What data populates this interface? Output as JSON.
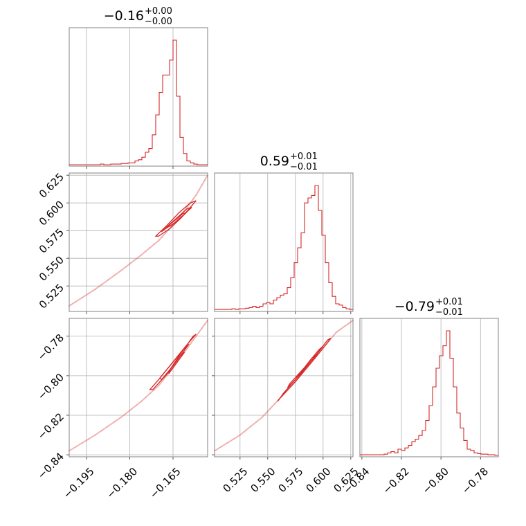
{
  "chart_data": {
    "type": "corner",
    "color": "#d62728",
    "params": [
      {
        "range": [
          -0.201,
          -0.153
        ],
        "title": {
          "median": "−0.16",
          "plus": "+0.00",
          "minus": "−0.00"
        },
        "ticks": [
          -0.195,
          -0.18,
          -0.165
        ],
        "tick_labels": [
          "−0.195",
          "−0.180",
          "−0.165"
        ],
        "hist": {
          "edges_start": -0.201,
          "bin_width": 0.0012,
          "values": [
            0,
            0,
            0,
            0,
            0,
            0,
            0,
            0,
            0,
            0.5,
            0,
            0,
            0.5,
            0.5,
            0.5,
            1,
            1,
            1.5,
            1.5,
            3,
            4,
            6,
            10,
            13,
            24,
            40,
            58,
            72,
            72,
            84,
            100,
            55,
            22,
            9,
            3,
            1.5,
            0.5,
            0,
            0,
            0
          ]
        }
      },
      {
        "range": [
          0.502,
          0.627
        ],
        "title": {
          "median": "0.59",
          "plus": "+0.01",
          "minus": "−0.01"
        },
        "ticks": [
          0.525,
          0.55,
          0.575,
          0.6,
          0.625
        ],
        "tick_labels": [
          "0.525",
          "0.550",
          "0.575",
          "0.600",
          "0.625"
        ],
        "hist": {
          "edges_start": 0.502,
          "bin_width": 0.003125,
          "values": [
            0.5,
            0.5,
            0.5,
            0.5,
            0.5,
            1,
            0.5,
            1,
            1,
            1.5,
            2,
            3,
            2,
            3,
            5,
            6,
            5,
            8,
            10,
            12,
            13,
            18,
            26,
            38,
            50,
            62,
            86,
            90,
            92,
            100,
            80,
            60,
            38,
            22,
            11,
            5,
            4,
            2,
            1,
            0.5
          ]
        }
      },
      {
        "range": [
          -0.841,
          -0.771
        ],
        "title": {
          "median": "−0.79",
          "plus": "+0.01",
          "minus": "−0.01"
        },
        "ticks": [
          -0.84,
          -0.82,
          -0.8,
          -0.78
        ],
        "tick_labels": [
          "−0.84",
          "−0.82",
          "−0.80",
          "−0.78"
        ],
        "hist": {
          "edges_start": -0.841,
          "bin_width": 0.00175,
          "values": [
            0.5,
            0.5,
            0.5,
            0.5,
            0.5,
            0.5,
            0.5,
            1,
            2,
            3,
            2,
            5,
            4,
            6,
            8,
            11,
            13,
            16,
            20,
            28,
            40,
            55,
            70,
            80,
            88,
            100,
            78,
            55,
            34,
            22,
            12,
            5,
            4,
            2,
            1.5,
            1,
            1,
            0.5,
            0.5,
            0
          ]
        }
      }
    ],
    "pairs": [
      {
        "x_param": 0,
        "y_param": 1,
        "ridge": [
          [
            -0.201,
            0.507
          ],
          [
            -0.192,
            0.522
          ],
          [
            -0.183,
            0.539
          ],
          [
            -0.176,
            0.553
          ],
          [
            -0.17,
            0.566
          ],
          [
            -0.165,
            0.58
          ],
          [
            -0.161,
            0.593
          ],
          [
            -0.157,
            0.607
          ],
          [
            -0.153,
            0.625
          ]
        ],
        "contours": [
          [
            [
              -0.17,
              0.57
            ],
            [
              -0.166,
              0.577
            ],
            [
              -0.162,
              0.587
            ],
            [
              -0.158,
              0.599
            ],
            [
              -0.157,
              0.602
            ],
            [
              -0.159,
              0.6
            ],
            [
              -0.163,
              0.591
            ],
            [
              -0.167,
              0.58
            ],
            [
              -0.171,
              0.57
            ]
          ],
          [
            [
              -0.168,
              0.576
            ],
            [
              -0.1645,
              0.582
            ],
            [
              -0.161,
              0.59
            ],
            [
              -0.1585,
              0.596
            ],
            [
              -0.16,
              0.595
            ],
            [
              -0.163,
              0.588
            ],
            [
              -0.1665,
              0.58
            ],
            [
              -0.169,
              0.574
            ]
          ],
          [
            [
              -0.166,
              0.579
            ],
            [
              -0.163,
              0.585
            ],
            [
              -0.1605,
              0.591
            ],
            [
              -0.1615,
              0.5905
            ],
            [
              -0.1645,
              0.584
            ],
            [
              -0.167,
              0.5785
            ]
          ]
        ]
      },
      {
        "x_param": 0,
        "y_param": 2,
        "ridge": [
          [
            -0.201,
            -0.838
          ],
          [
            -0.192,
            -0.83
          ],
          [
            -0.183,
            -0.821
          ],
          [
            -0.176,
            -0.813
          ],
          [
            -0.17,
            -0.805
          ],
          [
            -0.165,
            -0.796
          ],
          [
            -0.161,
            -0.788
          ],
          [
            -0.157,
            -0.78
          ],
          [
            -0.153,
            -0.772
          ]
        ],
        "contours": [
          [
            [
              -0.172,
              -0.807
            ],
            [
              -0.167,
              -0.799
            ],
            [
              -0.162,
              -0.788
            ],
            [
              -0.158,
              -0.78
            ],
            [
              -0.157,
              -0.779
            ],
            [
              -0.16,
              -0.784
            ],
            [
              -0.165,
              -0.793
            ],
            [
              -0.17,
              -0.802
            ],
            [
              -0.173,
              -0.807
            ]
          ],
          [
            [
              -0.169,
              -0.802
            ],
            [
              -0.165,
              -0.795
            ],
            [
              -0.161,
              -0.787
            ],
            [
              -0.1595,
              -0.784
            ],
            [
              -0.1615,
              -0.787
            ],
            [
              -0.1655,
              -0.794
            ],
            [
              -0.1695,
              -0.801
            ]
          ],
          [
            [
              -0.1665,
              -0.799
            ],
            [
              -0.163,
              -0.792
            ],
            [
              -0.161,
              -0.788
            ],
            [
              -0.1625,
              -0.79
            ],
            [
              -0.166,
              -0.797
            ]
          ]
        ]
      },
      {
        "x_param": 1,
        "y_param": 2,
        "ridge": [
          [
            0.502,
            -0.838
          ],
          [
            0.525,
            -0.83
          ],
          [
            0.545,
            -0.821
          ],
          [
            0.56,
            -0.812
          ],
          [
            0.575,
            -0.803
          ],
          [
            0.588,
            -0.794
          ],
          [
            0.6,
            -0.786
          ],
          [
            0.612,
            -0.778
          ],
          [
            0.627,
            -0.772
          ]
        ],
        "contours": [
          [
            [
              0.56,
              -0.812
            ],
            [
              0.575,
              -0.803
            ],
            [
              0.59,
              -0.793
            ],
            [
              0.603,
              -0.784
            ],
            [
              0.607,
              -0.781
            ],
            [
              0.604,
              -0.782
            ],
            [
              0.593,
              -0.79
            ],
            [
              0.578,
              -0.8
            ],
            [
              0.564,
              -0.809
            ],
            [
              0.559,
              -0.813
            ]
          ],
          [
            [
              0.568,
              -0.806
            ],
            [
              0.58,
              -0.799
            ],
            [
              0.593,
              -0.79
            ],
            [
              0.6,
              -0.785
            ],
            [
              0.596,
              -0.787
            ],
            [
              0.583,
              -0.796
            ],
            [
              0.57,
              -0.804
            ]
          ],
          [
            [
              0.576,
              -0.801
            ],
            [
              0.587,
              -0.794
            ],
            [
              0.595,
              -0.789
            ],
            [
              0.59,
              -0.791
            ],
            [
              0.579,
              -0.799
            ]
          ]
        ]
      }
    ]
  }
}
